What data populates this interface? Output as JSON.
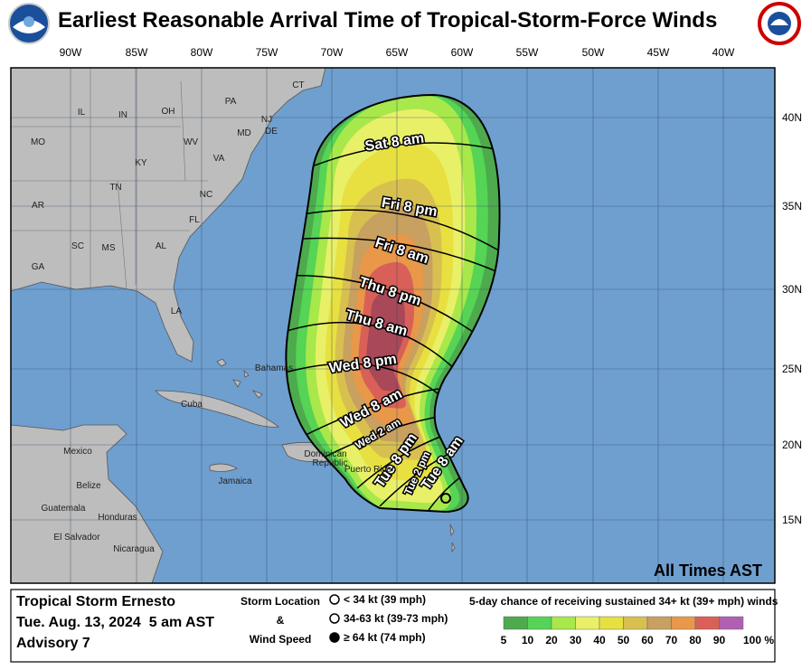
{
  "header": {
    "title": "Earliest Reasonable Arrival Time of Tropical-Storm-Force Winds"
  },
  "map": {
    "longitude_labels": [
      "90W",
      "85W",
      "80W",
      "75W",
      "70W",
      "65W",
      "60W",
      "55W",
      "50W",
      "45W",
      "40W"
    ],
    "latitude_labels": [
      "40N",
      "35N",
      "30N",
      "25N",
      "20N",
      "15N"
    ],
    "region_labels": [
      "CT",
      "PA",
      "NJ",
      "DE",
      "MD",
      "IL",
      "IN",
      "OH",
      "WV",
      "VA",
      "MO",
      "KY",
      "NC",
      "TN",
      "AR",
      "SC",
      "MS",
      "AL",
      "GA",
      "LA",
      "FL",
      "Bahamas",
      "Cuba",
      "Mexico",
      "Belize",
      "Jamaica",
      "Guatemala",
      "Honduras",
      "El Salvador",
      "Nicaragua",
      "Dominican",
      "Republic",
      "Puerto Rico"
    ],
    "time_labels": [
      "Sat 8 am",
      "Fri 8 pm",
      "Fri 8 am",
      "Thu 8 pm",
      "Thu 8 am",
      "Wed 8 pm",
      "Wed 8 am",
      "Wed 2 am",
      "Tue 8 pm",
      "Tue 2 pm",
      "Tue 8 am"
    ],
    "note": "All Times AST"
  },
  "legend": {
    "storm": "Tropical Storm Ernesto",
    "issued": "Tue. Aug. 13, 2024  5 am AST",
    "advisory": "Advisory 7",
    "symbol_title": [
      "Storm Location",
      "&",
      "Wind Speed"
    ],
    "symbols": [
      "< 34 kt (39 mph)",
      "34-63 kt (39-73 mph)",
      "≥ 64 kt (74 mph)"
    ],
    "scale_title": "5-day chance of receiving sustained 34+ kt (39+ mph) winds",
    "scale_labels": [
      "5",
      "10",
      "20",
      "30",
      "40",
      "50",
      "60",
      "70",
      "80",
      "90",
      "100 %"
    ]
  }
}
